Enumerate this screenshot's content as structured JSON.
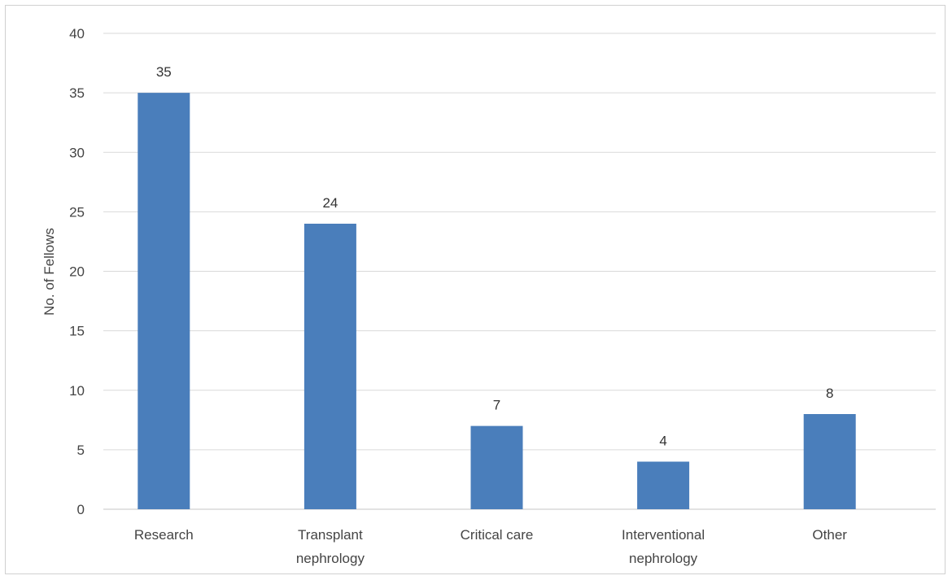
{
  "chart_data": {
    "type": "bar",
    "categories": [
      "Research",
      "Transplant nephrology",
      "Critical care",
      "Interventional nephrology",
      "Other"
    ],
    "category_lines": [
      [
        "Research"
      ],
      [
        "Transplant",
        "nephrology"
      ],
      [
        "Critical care"
      ],
      [
        "Interventional",
        "nephrology"
      ],
      [
        "Other"
      ]
    ],
    "values": [
      35,
      24,
      7,
      4,
      8
    ],
    "data_labels": [
      "35",
      "24",
      "7",
      "4",
      "8"
    ],
    "title": "",
    "xlabel": "",
    "ylabel": "No. of Fellows",
    "ylim": [
      0,
      40
    ],
    "yticks": [
      0,
      5,
      10,
      15,
      20,
      25,
      30,
      35,
      40
    ],
    "grid": true,
    "legend": "none",
    "bar_color": "#4a7ebb",
    "grid_color": "#d9d9d9"
  }
}
